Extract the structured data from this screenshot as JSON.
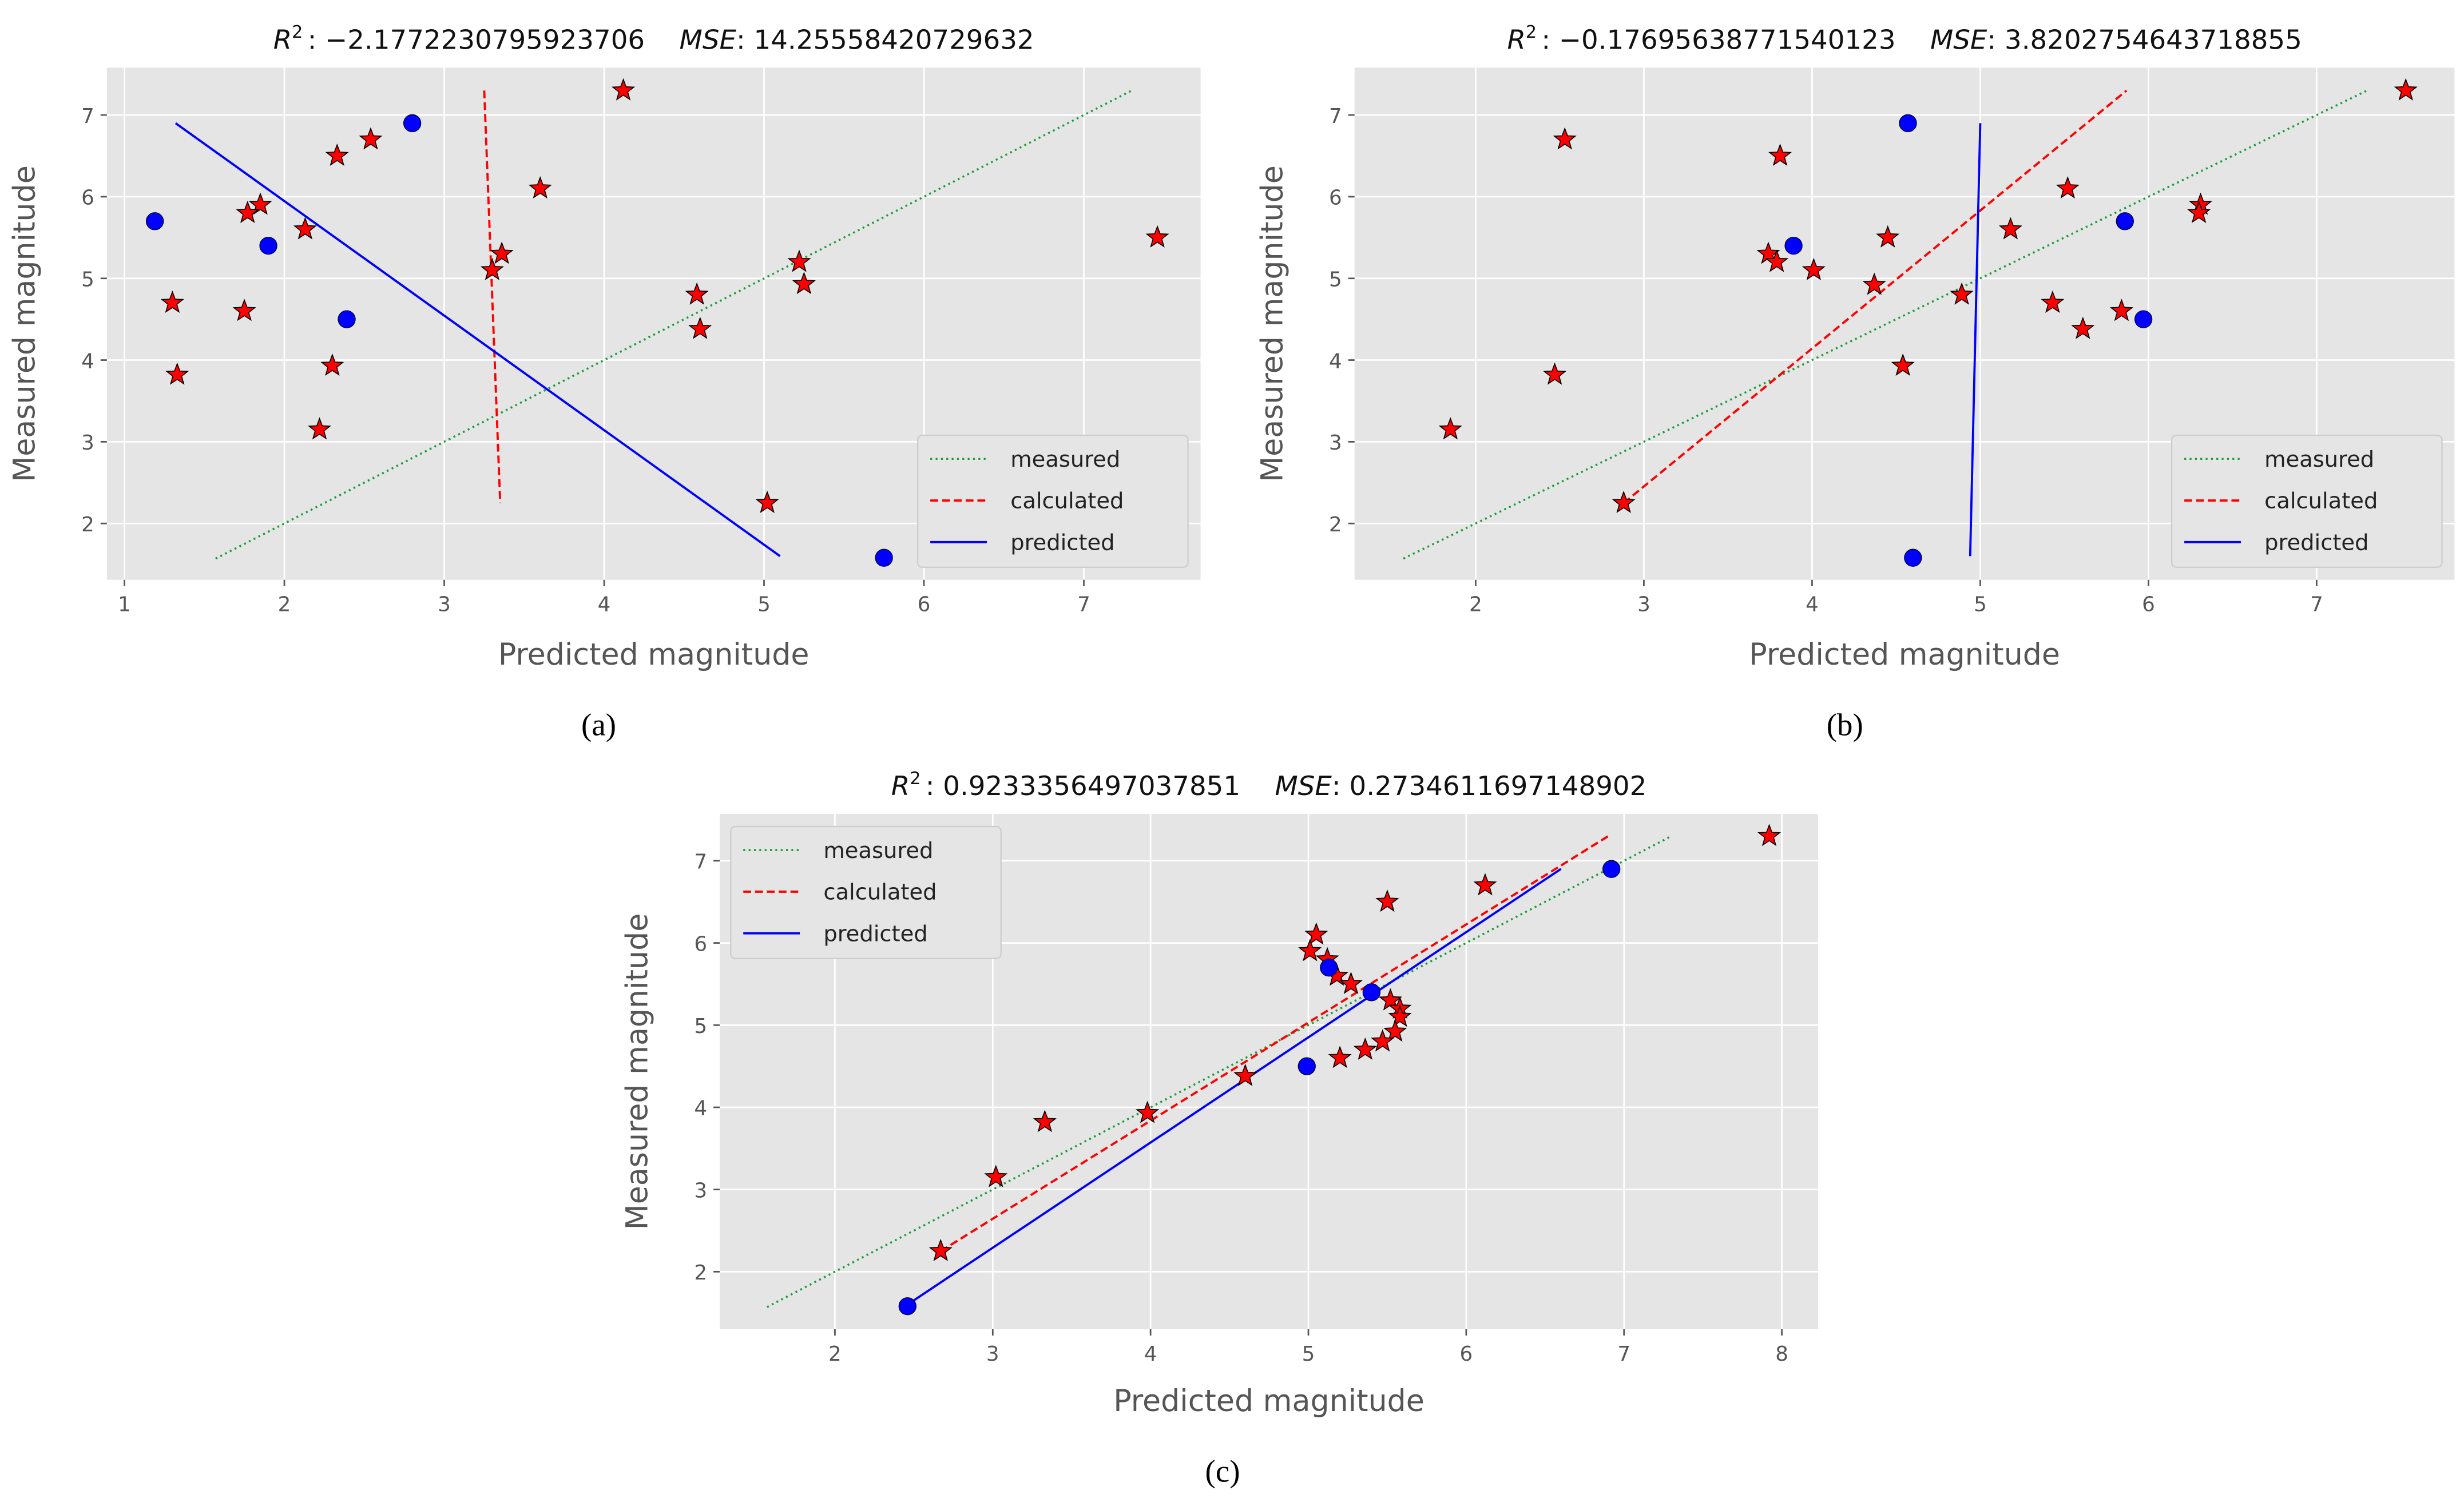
{
  "chart_data": [
    {
      "type": "scatter",
      "panel_label": "(a)",
      "title": {
        "r_symbol": "R",
        "r_exp": "2",
        "r2_value": ": −2.1772230795923706",
        "mse_symbol": "MSE",
        "mse_value": ": 14.25558420729632"
      },
      "xlabel": "Predicted magnitude",
      "ylabel": "Measured magnitude",
      "xlim": [
        0.89,
        7.73
      ],
      "ylim": [
        1.31,
        7.58
      ],
      "xticks": [
        "1",
        "2",
        "3",
        "4",
        "5",
        "6",
        "7"
      ],
      "yticks": [
        "2",
        "3",
        "4",
        "5",
        "6",
        "7"
      ],
      "grid": true,
      "legend_position": "lower-right",
      "legend": [
        "measured",
        "calculated",
        "predicted"
      ],
      "stars": [
        [
          4.12,
          7.3
        ],
        [
          2.54,
          6.7
        ],
        [
          2.33,
          6.5
        ],
        [
          3.6,
          6.1
        ],
        [
          1.85,
          5.9
        ],
        [
          1.77,
          5.8
        ],
        [
          2.13,
          5.6
        ],
        [
          7.46,
          5.5
        ],
        [
          3.36,
          5.3
        ],
        [
          5.22,
          5.2
        ],
        [
          3.3,
          5.1
        ],
        [
          5.25,
          4.93
        ],
        [
          4.58,
          4.8
        ],
        [
          1.3,
          4.7
        ],
        [
          1.75,
          4.6
        ],
        [
          4.6,
          4.38
        ],
        [
          2.3,
          3.93
        ],
        [
          1.33,
          3.82
        ],
        [
          2.22,
          3.15
        ],
        [
          5.02,
          2.25
        ]
      ],
      "circles": [
        [
          2.8,
          6.9
        ],
        [
          1.19,
          5.7
        ],
        [
          1.9,
          5.4
        ],
        [
          2.39,
          4.5
        ],
        [
          5.75,
          1.58
        ]
      ],
      "lines": {
        "measured": [
          [
            1.57,
            1.57
          ],
          [
            7.3,
            7.3
          ]
        ],
        "calculated": [
          [
            3.25,
            7.3
          ],
          [
            3.35,
            2.25
          ]
        ],
        "predicted": [
          [
            1.32,
            6.9
          ],
          [
            5.1,
            1.6
          ]
        ]
      }
    },
    {
      "type": "scatter",
      "panel_label": "(b)",
      "title": {
        "r_symbol": "R",
        "r_exp": "2",
        "r2_value": ": −0.17695638771540123",
        "mse_symbol": "MSE",
        "mse_value": ": 3.8202754643718855"
      },
      "xlabel": "Predicted magnitude",
      "ylabel": "Measured magnitude",
      "xlim": [
        1.28,
        7.82
      ],
      "ylim": [
        1.31,
        7.58
      ],
      "xticks": [
        "2",
        "3",
        "4",
        "5",
        "6",
        "7"
      ],
      "yticks": [
        "2",
        "3",
        "4",
        "5",
        "6",
        "7"
      ],
      "grid": true,
      "legend_position": "lower-right",
      "legend": [
        "measured",
        "calculated",
        "predicted"
      ],
      "stars": [
        [
          7.53,
          7.3
        ],
        [
          2.53,
          6.7
        ],
        [
          3.81,
          6.5
        ],
        [
          5.52,
          6.1
        ],
        [
          6.31,
          5.9
        ],
        [
          6.3,
          5.8
        ],
        [
          5.18,
          5.6
        ],
        [
          4.45,
          5.5
        ],
        [
          3.74,
          5.3
        ],
        [
          3.79,
          5.2
        ],
        [
          4.01,
          5.1
        ],
        [
          4.37,
          4.92
        ],
        [
          4.89,
          4.8
        ],
        [
          5.43,
          4.7
        ],
        [
          5.84,
          4.6
        ],
        [
          5.61,
          4.38
        ],
        [
          4.54,
          3.93
        ],
        [
          2.47,
          3.82
        ],
        [
          1.85,
          3.15
        ],
        [
          2.88,
          2.25
        ]
      ],
      "circles": [
        [
          4.57,
          6.9
        ],
        [
          5.86,
          5.7
        ],
        [
          3.89,
          5.4
        ],
        [
          5.97,
          4.5
        ],
        [
          4.6,
          1.58
        ]
      ],
      "lines": {
        "measured": [
          [
            1.57,
            1.57
          ],
          [
            7.3,
            7.3
          ]
        ],
        "calculated": [
          [
            2.88,
            2.25
          ],
          [
            5.87,
            7.3
          ]
        ],
        "predicted": [
          [
            4.94,
            1.6
          ],
          [
            5.0,
            6.9
          ]
        ]
      }
    },
    {
      "type": "scatter",
      "panel_label": "(c)",
      "title": {
        "r_symbol": "R",
        "r_exp": "2",
        "r2_value": ": 0.9233356497037851",
        "mse_symbol": "MSE",
        "mse_value": ": 0.2734611697148902"
      },
      "xlabel": "Predicted magnitude",
      "ylabel": "Measured magnitude",
      "xlim": [
        1.27,
        8.23
      ],
      "ylim": [
        1.3,
        7.57
      ],
      "xticks": [
        "2",
        "3",
        "4",
        "5",
        "6",
        "7",
        "8"
      ],
      "yticks": [
        "2",
        "3",
        "4",
        "5",
        "6",
        "7"
      ],
      "grid": true,
      "legend_position": "upper-left",
      "legend": [
        "measured",
        "calculated",
        "predicted"
      ],
      "stars": [
        [
          7.92,
          7.3
        ],
        [
          6.12,
          6.7
        ],
        [
          5.5,
          6.5
        ],
        [
          5.05,
          6.1
        ],
        [
          5.01,
          5.9
        ],
        [
          5.12,
          5.8
        ],
        [
          5.18,
          5.6
        ],
        [
          5.27,
          5.5
        ],
        [
          5.52,
          5.3
        ],
        [
          5.58,
          5.2
        ],
        [
          5.58,
          5.1
        ],
        [
          5.55,
          4.92
        ],
        [
          5.47,
          4.8
        ],
        [
          5.36,
          4.7
        ],
        [
          5.2,
          4.6
        ],
        [
          4.6,
          4.38
        ],
        [
          3.98,
          3.93
        ],
        [
          3.33,
          3.82
        ],
        [
          3.02,
          3.15
        ],
        [
          2.67,
          2.25
        ]
      ],
      "circles": [
        [
          6.92,
          6.9
        ],
        [
          5.13,
          5.7
        ],
        [
          5.4,
          5.4
        ],
        [
          4.99,
          4.5
        ],
        [
          2.46,
          1.58
        ]
      ],
      "lines": {
        "measured": [
          [
            1.57,
            1.57
          ],
          [
            7.3,
            7.3
          ]
        ],
        "calculated": [
          [
            2.67,
            2.25
          ],
          [
            6.9,
            7.3
          ]
        ],
        "predicted": [
          [
            2.46,
            1.6
          ],
          [
            6.6,
            6.9
          ]
        ]
      }
    }
  ],
  "colors": {
    "background": "#e5e5e5",
    "grid": "#ffffff",
    "measured": "#1a9e3a",
    "calculated": "#ff0000",
    "predicted": "#0000ff",
    "star": "#ff0000",
    "circle": "#0000ff"
  }
}
